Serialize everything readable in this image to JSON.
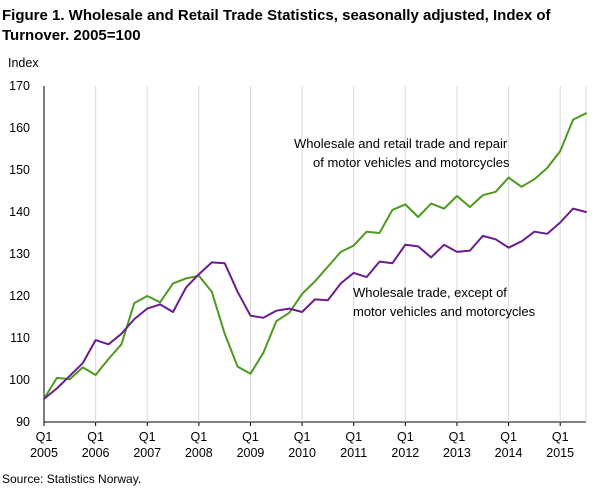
{
  "chart_data": {
    "type": "line",
    "title_line1": "Figure 1. Wholesale and Retail Trade Statistics, seasonally adjusted, Index of",
    "title_line2": "Turnover. 2005=100",
    "ylabel": "Index",
    "ylim": [
      90,
      170
    ],
    "yticks": [
      90,
      100,
      110,
      120,
      130,
      140,
      150,
      160,
      170
    ],
    "grid": "vertical",
    "source": "Source: Statistics Norway.",
    "x_ticks": [
      {
        "quarter": "Q1",
        "year": "2005",
        "index": 0
      },
      {
        "quarter": "Q1",
        "year": "2006",
        "index": 4
      },
      {
        "quarter": "Q1",
        "year": "2007",
        "index": 8
      },
      {
        "quarter": "Q1",
        "year": "2008",
        "index": 12
      },
      {
        "quarter": "Q1",
        "year": "2009",
        "index": 16
      },
      {
        "quarter": "Q1",
        "year": "2010",
        "index": 20
      },
      {
        "quarter": "Q1",
        "year": "2011",
        "index": 24
      },
      {
        "quarter": "Q1",
        "year": "2012",
        "index": 28
      },
      {
        "quarter": "Q1",
        "year": "2013",
        "index": 32
      },
      {
        "quarter": "Q1",
        "year": "2014",
        "index": 36
      },
      {
        "quarter": "Q1",
        "year": "2015",
        "index": 40
      }
    ],
    "series": [
      {
        "key": "retail",
        "color": "#4f9a1e",
        "label_lines": [
          "Wholesale  and retail trade and repair",
          "of motor vehicles  and motorcycles"
        ],
        "values": [
          95.5,
          100.5,
          100.2,
          103.0,
          101.2,
          105.0,
          108.5,
          118.3,
          120.0,
          118.5,
          123.0,
          124.2,
          124.8,
          121.0,
          111.0,
          103.2,
          101.5,
          106.5,
          114.0,
          116.0,
          120.5,
          123.5,
          127.0,
          130.5,
          132.0,
          135.3,
          135.0,
          140.5,
          141.8,
          138.8,
          142.0,
          140.8,
          143.8,
          141.2,
          144.0,
          144.8,
          148.2,
          146.0,
          147.8,
          150.5,
          154.5,
          162.0,
          163.5
        ]
      },
      {
        "key": "wholesale",
        "color": "#6a1d8c",
        "label_lines": [
          "Wholesale  trade,  except of",
          "motor vehicles  and motorcycles"
        ],
        "values": [
          95.5,
          98.0,
          101.0,
          104.0,
          109.5,
          108.5,
          111.0,
          114.5,
          117.0,
          118.0,
          116.2,
          122.0,
          125.2,
          128.0,
          127.8,
          121.0,
          115.3,
          114.8,
          116.5,
          117.0,
          116.2,
          119.2,
          119.0,
          123.0,
          125.5,
          124.5,
          128.2,
          127.8,
          132.2,
          131.8,
          129.2,
          132.2,
          130.5,
          130.8,
          134.3,
          133.5,
          131.5,
          133.0,
          135.3,
          134.8,
          137.5,
          140.8,
          140.0
        ]
      }
    ]
  }
}
